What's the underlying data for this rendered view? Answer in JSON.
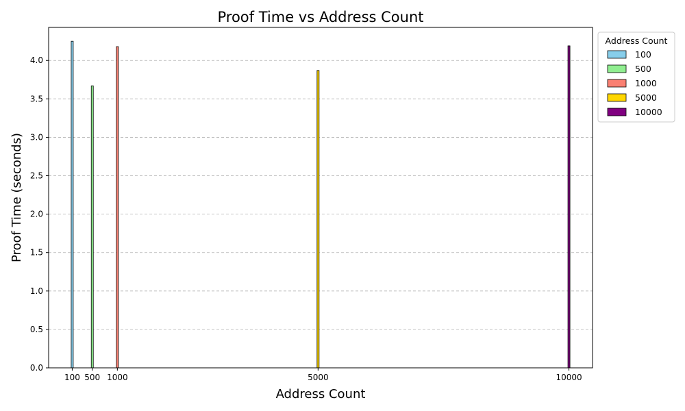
{
  "chart_data": {
    "type": "bar",
    "title": "Proof Time vs Address Count",
    "xlabel": "Address Count",
    "ylabel": "Proof Time (seconds)",
    "x": [
      100,
      500,
      1000,
      5000,
      10000
    ],
    "x_tick_labels": [
      "100",
      "500",
      "1000",
      "5000",
      "10000"
    ],
    "values": [
      4.25,
      3.67,
      4.18,
      3.87,
      4.19
    ],
    "colors": [
      "#87CEEB",
      "#90EE90",
      "#FA8072",
      "#FFD700",
      "#800080"
    ],
    "edge_color": "#000000",
    "xlim": [
      -370,
      10470
    ],
    "ylim": [
      0,
      4.43
    ],
    "y_ticks": [
      0.0,
      0.5,
      1.0,
      1.5,
      2.0,
      2.5,
      3.0,
      3.5,
      4.0
    ],
    "y_tick_labels": [
      "0.0",
      "0.5",
      "1.0",
      "1.5",
      "2.0",
      "2.5",
      "3.0",
      "3.5",
      "4.0"
    ],
    "grid": "y-dashed",
    "legend": {
      "title": "Address Count",
      "placement": "outside-top-right",
      "entries": [
        "100",
        "500",
        "1000",
        "5000",
        "10000"
      ]
    }
  }
}
